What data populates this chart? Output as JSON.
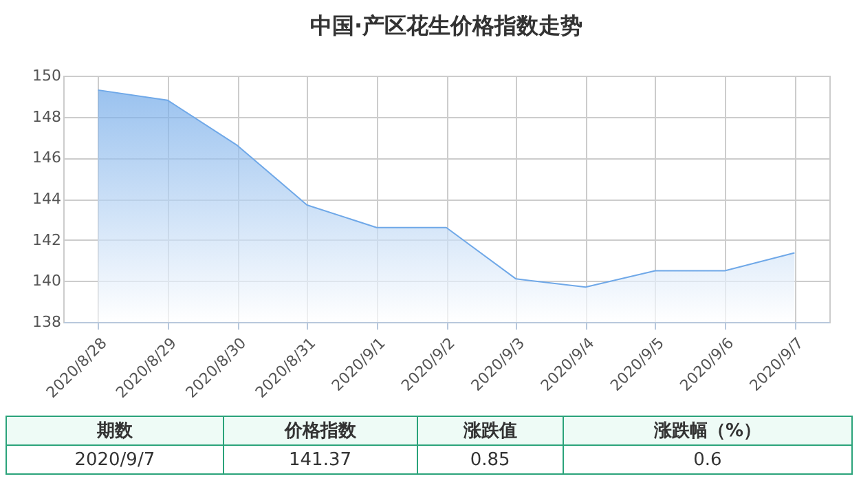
{
  "chart_data": {
    "type": "area",
    "title": "中国·产区花生价格指数走势",
    "categories": [
      "2020/8/28",
      "2020/8/29",
      "2020/8/30",
      "2020/8/31",
      "2020/9/1",
      "2020/9/2",
      "2020/9/3",
      "2020/9/4",
      "2020/9/5",
      "2020/9/6",
      "2020/9/7"
    ],
    "series": [
      {
        "color": "#6fa8e8",
        "values": [
          149.3,
          148.8,
          146.6,
          143.7,
          142.6,
          142.6,
          140.1,
          139.7,
          140.5,
          140.5,
          141.37
        ]
      }
    ],
    "ylim": [
      138,
      150
    ],
    "yticks": [
      138,
      140,
      142,
      144,
      146,
      148,
      150
    ],
    "grid": true,
    "annotations": [
      "期数",
      "价格指数",
      "涨跌值",
      "涨跌幅（%）",
      "2020/9/7",
      "141.37",
      "0.85",
      "0.6"
    ]
  }
}
